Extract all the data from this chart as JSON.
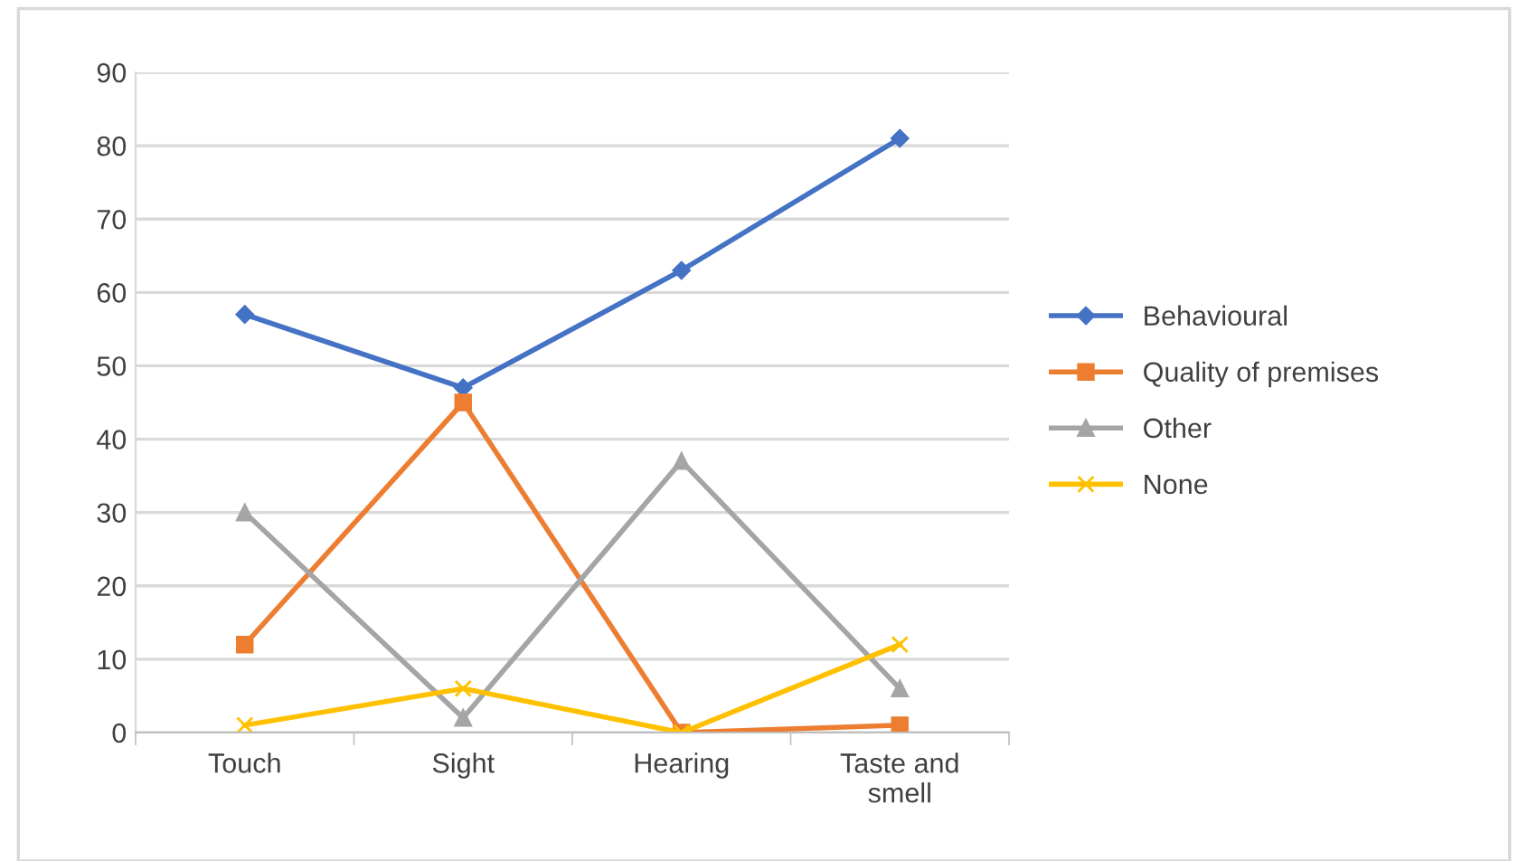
{
  "chart_data": {
    "type": "line",
    "categories": [
      "Touch",
      "Sight",
      "Hearing",
      "Taste and\nsmell"
    ],
    "series": [
      {
        "name": "Behavioural",
        "color": "#4472c4",
        "marker": "diamond",
        "values": [
          57,
          47,
          63,
          81
        ]
      },
      {
        "name": "Quality of premises",
        "color": "#ed7d31",
        "marker": "square",
        "values": [
          12,
          45,
          0,
          1
        ]
      },
      {
        "name": "Other",
        "color": "#a5a5a5",
        "marker": "triangle",
        "values": [
          30,
          2,
          37,
          6
        ]
      },
      {
        "name": "None",
        "color": "#ffc000",
        "marker": "cross",
        "values": [
          1,
          6,
          0,
          12
        ]
      }
    ],
    "ylim": [
      0,
      90
    ],
    "yticks": [
      0,
      10,
      20,
      30,
      40,
      50,
      60,
      70,
      80,
      90
    ],
    "grid": "y",
    "legend": "right",
    "line_style": "solid"
  }
}
